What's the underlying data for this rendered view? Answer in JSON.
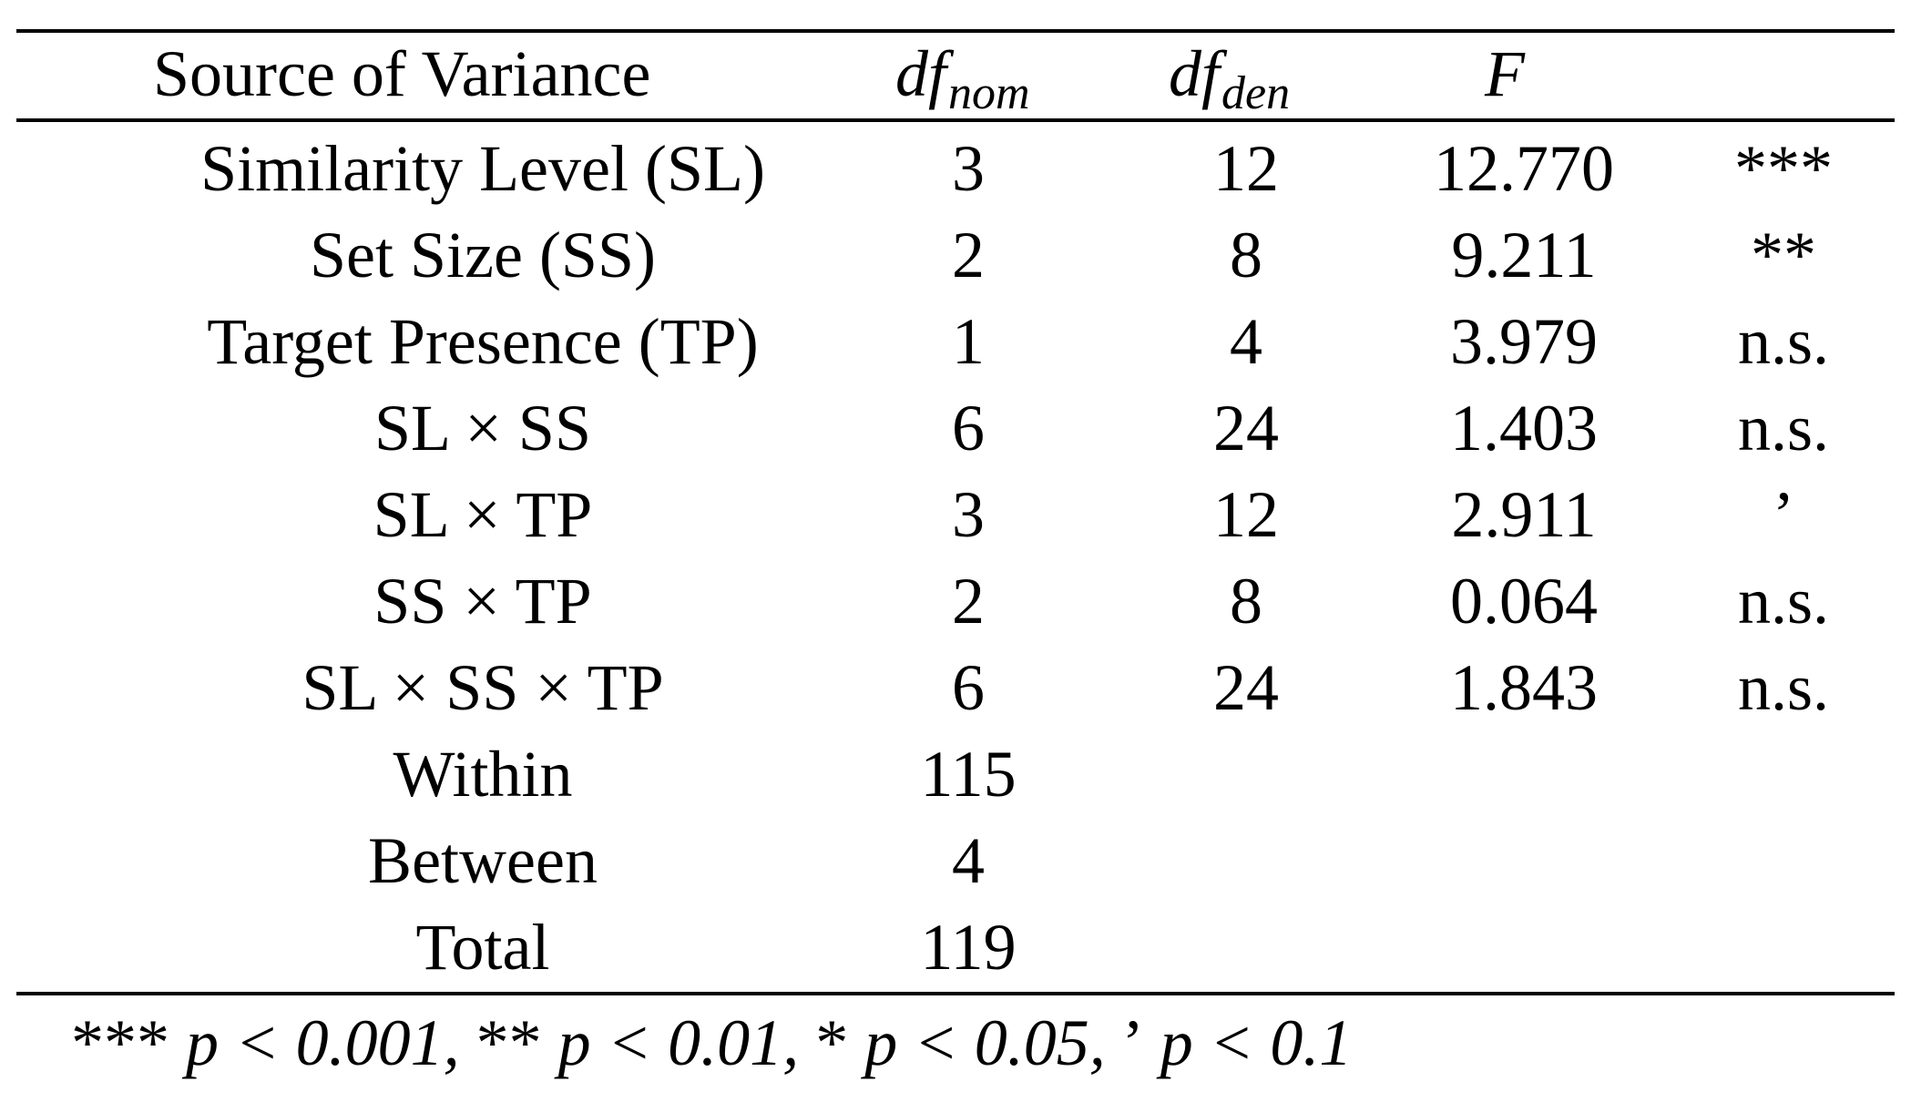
{
  "table": {
    "headers": {
      "source": "Source of Variance",
      "df_nom_main": "df",
      "df_nom_sub": "nom",
      "df_den_main": "df",
      "df_den_sub": "den",
      "f": "F",
      "sig": ""
    },
    "rows": [
      {
        "source": "Similarity Level (SL)",
        "df_nom": "3",
        "df_den": "12",
        "f": "12.770",
        "sig": "***"
      },
      {
        "source": "Set Size (SS)",
        "df_nom": "2",
        "df_den": "8",
        "f": "9.211",
        "sig": "**"
      },
      {
        "source": "Target Presence (TP)",
        "df_nom": "1",
        "df_den": "4",
        "f": "3.979",
        "sig": "n.s."
      },
      {
        "source": "SL × SS",
        "df_nom": "6",
        "df_den": "24",
        "f": "1.403",
        "sig": "n.s."
      },
      {
        "source": "SL × TP",
        "df_nom": "3",
        "df_den": "12",
        "f": "2.911",
        "sig": "’"
      },
      {
        "source": "SS × TP",
        "df_nom": "2",
        "df_den": "8",
        "f": "0.064",
        "sig": "n.s."
      },
      {
        "source": "SL × SS × TP",
        "df_nom": "6",
        "df_den": "24",
        "f": "1.843",
        "sig": "n.s."
      },
      {
        "source": "Within",
        "df_nom": "115",
        "df_den": "",
        "f": "",
        "sig": ""
      },
      {
        "source": "Between",
        "df_nom": "4",
        "df_den": "",
        "f": "",
        "sig": ""
      },
      {
        "source": "Total",
        "df_nom": "119",
        "df_den": "",
        "f": "",
        "sig": ""
      }
    ]
  },
  "footnote": {
    "s1": "***",
    "t1": " p < 0.001, ",
    "s2": "**",
    "t2": " p < 0.01, ",
    "s3": "*",
    "t3": " p < 0.05, ",
    "s4": " ’",
    "t4": " p < 0.1"
  }
}
